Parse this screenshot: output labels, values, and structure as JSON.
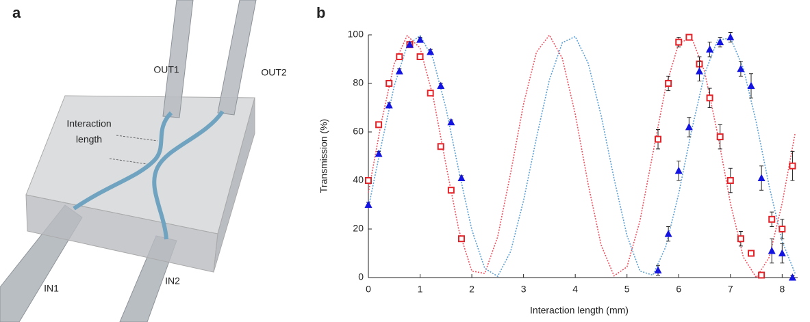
{
  "diagram": {
    "panel_label": "a",
    "labels": {
      "out1": "OUT1",
      "out2": "OUT2",
      "in1": "IN1",
      "in2": "IN2",
      "interaction": [
        "Interaction",
        "length"
      ]
    }
  },
  "chart_data": {
    "type": "scatter",
    "panel_label": "b",
    "x_label": "Interaction length (mm)",
    "y_label": "Transmission (%)",
    "xlim": [
      0,
      8.3
    ],
    "ylim": [
      0,
      100
    ],
    "xticks": [
      0,
      1,
      2,
      3,
      4,
      5,
      6,
      7,
      8
    ],
    "yticks": [
      0,
      20,
      40,
      60,
      80,
      100
    ],
    "x": [
      0,
      0.2,
      0.4,
      0.6,
      0.8,
      1.0,
      1.2,
      1.4,
      1.6,
      1.8,
      5.6,
      5.8,
      6.0,
      6.2,
      6.4,
      6.6,
      6.8,
      7.0,
      7.2,
      7.4,
      7.6,
      7.8,
      8.0,
      8.2
    ],
    "series": [
      {
        "color": "#e32228",
        "marker": "square",
        "values": [
          40,
          63,
          80,
          91,
          96,
          91,
          76,
          54,
          36,
          16,
          57,
          80,
          97,
          99,
          88,
          74,
          58,
          40,
          16,
          10,
          1,
          24,
          20,
          46
        ],
        "errors": [
          1,
          1,
          1,
          1,
          1,
          1,
          1,
          1,
          1,
          1,
          4,
          3,
          2,
          1,
          3,
          4,
          5,
          5,
          3,
          1,
          1,
          3,
          4,
          6
        ]
      },
      {
        "color": "#1414e0",
        "marker": "triangle",
        "values": [
          30,
          51,
          71,
          85,
          96,
          98,
          93,
          79,
          64,
          41,
          3,
          18,
          44,
          62,
          85,
          94,
          97,
          99,
          86,
          79,
          41,
          11,
          10,
          0
        ],
        "errors": [
          1,
          1,
          1,
          1,
          1,
          1,
          1,
          1,
          1,
          1,
          2,
          3,
          4,
          4,
          4,
          3,
          2,
          2,
          3,
          5,
          5,
          5,
          4,
          1
        ]
      }
    ],
    "fit_x": [
      0,
      0.25,
      0.5,
      0.75,
      1.0,
      1.25,
      1.5,
      1.75,
      2.0,
      2.25,
      2.5,
      2.75,
      3.0,
      3.25,
      3.5,
      3.75,
      4.0,
      4.25,
      4.5,
      4.75,
      5.0,
      5.25,
      5.5,
      5.75,
      6.0,
      6.25,
      6.5,
      6.75,
      7.0,
      7.25,
      7.5,
      7.75,
      8.0,
      8.25
    ],
    "fits": [
      {
        "color": "#ee5060",
        "values": [
          35.0,
          63.9,
          88.1,
          99.7,
          94.6,
          74.7,
          46.5,
          19.5,
          2.7,
          1.7,
          16.8,
          43.0,
          71.5,
          92.9,
          99.9,
          90.3,
          67.3,
          38.4,
          13.4,
          0.7,
          4.4,
          23.3,
          51.1,
          78.6,
          96.5,
          98.9,
          84.9,
          59.4,
          30.6,
          8.4,
          0,
          8.4,
          30.6,
          59.4
        ]
      },
      {
        "color": "#5a9fd4",
        "values": [
          28.7,
          54.5,
          79.0,
          95.6,
          99.7,
          90.2,
          69.8,
          43.9,
          19.7,
          3.8,
          0.5,
          10.7,
          31.7,
          57.6,
          81.5,
          96.8,
          99.3,
          88.3,
          66.8,
          40.8,
          17.3,
          2.7,
          1.0,
          12.7,
          34.6,
          60.7,
          83.9,
          97.8,
          98.7,
          86.2,
          63.9,
          37.6,
          15.0,
          1.7
        ]
      }
    ]
  }
}
